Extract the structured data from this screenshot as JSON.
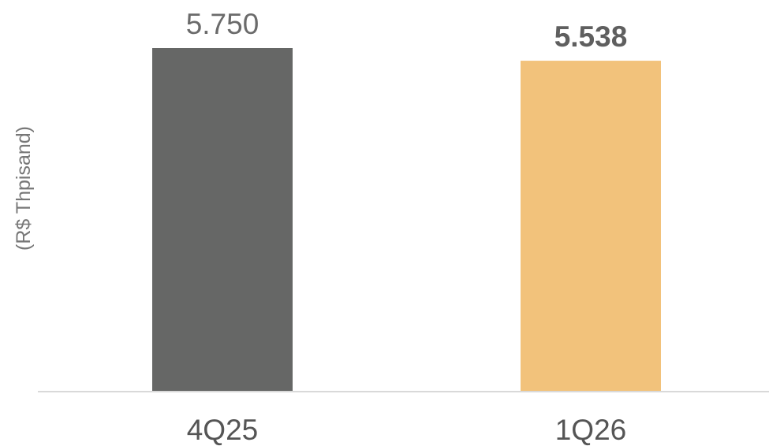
{
  "chart_data": {
    "type": "bar",
    "categories": [
      "4Q25",
      "1Q26"
    ],
    "values": [
      5750,
      5538
    ],
    "value_labels": [
      "5.750",
      "5.538"
    ],
    "value_label_bold": [
      false,
      true
    ],
    "bar_colors": [
      "#666766",
      "#f2c27b"
    ],
    "label_colors": [
      "#6b6b6b",
      "#5f5f5f"
    ],
    "axis_color": "#d9d9d9",
    "tick_label_color": "#555555",
    "ylabel_color": "#777777",
    "title": "",
    "xlabel": "",
    "ylabel": "(R$ Thpisand)",
    "ylim": [
      0,
      5750
    ],
    "grid": false,
    "legend": "none"
  }
}
